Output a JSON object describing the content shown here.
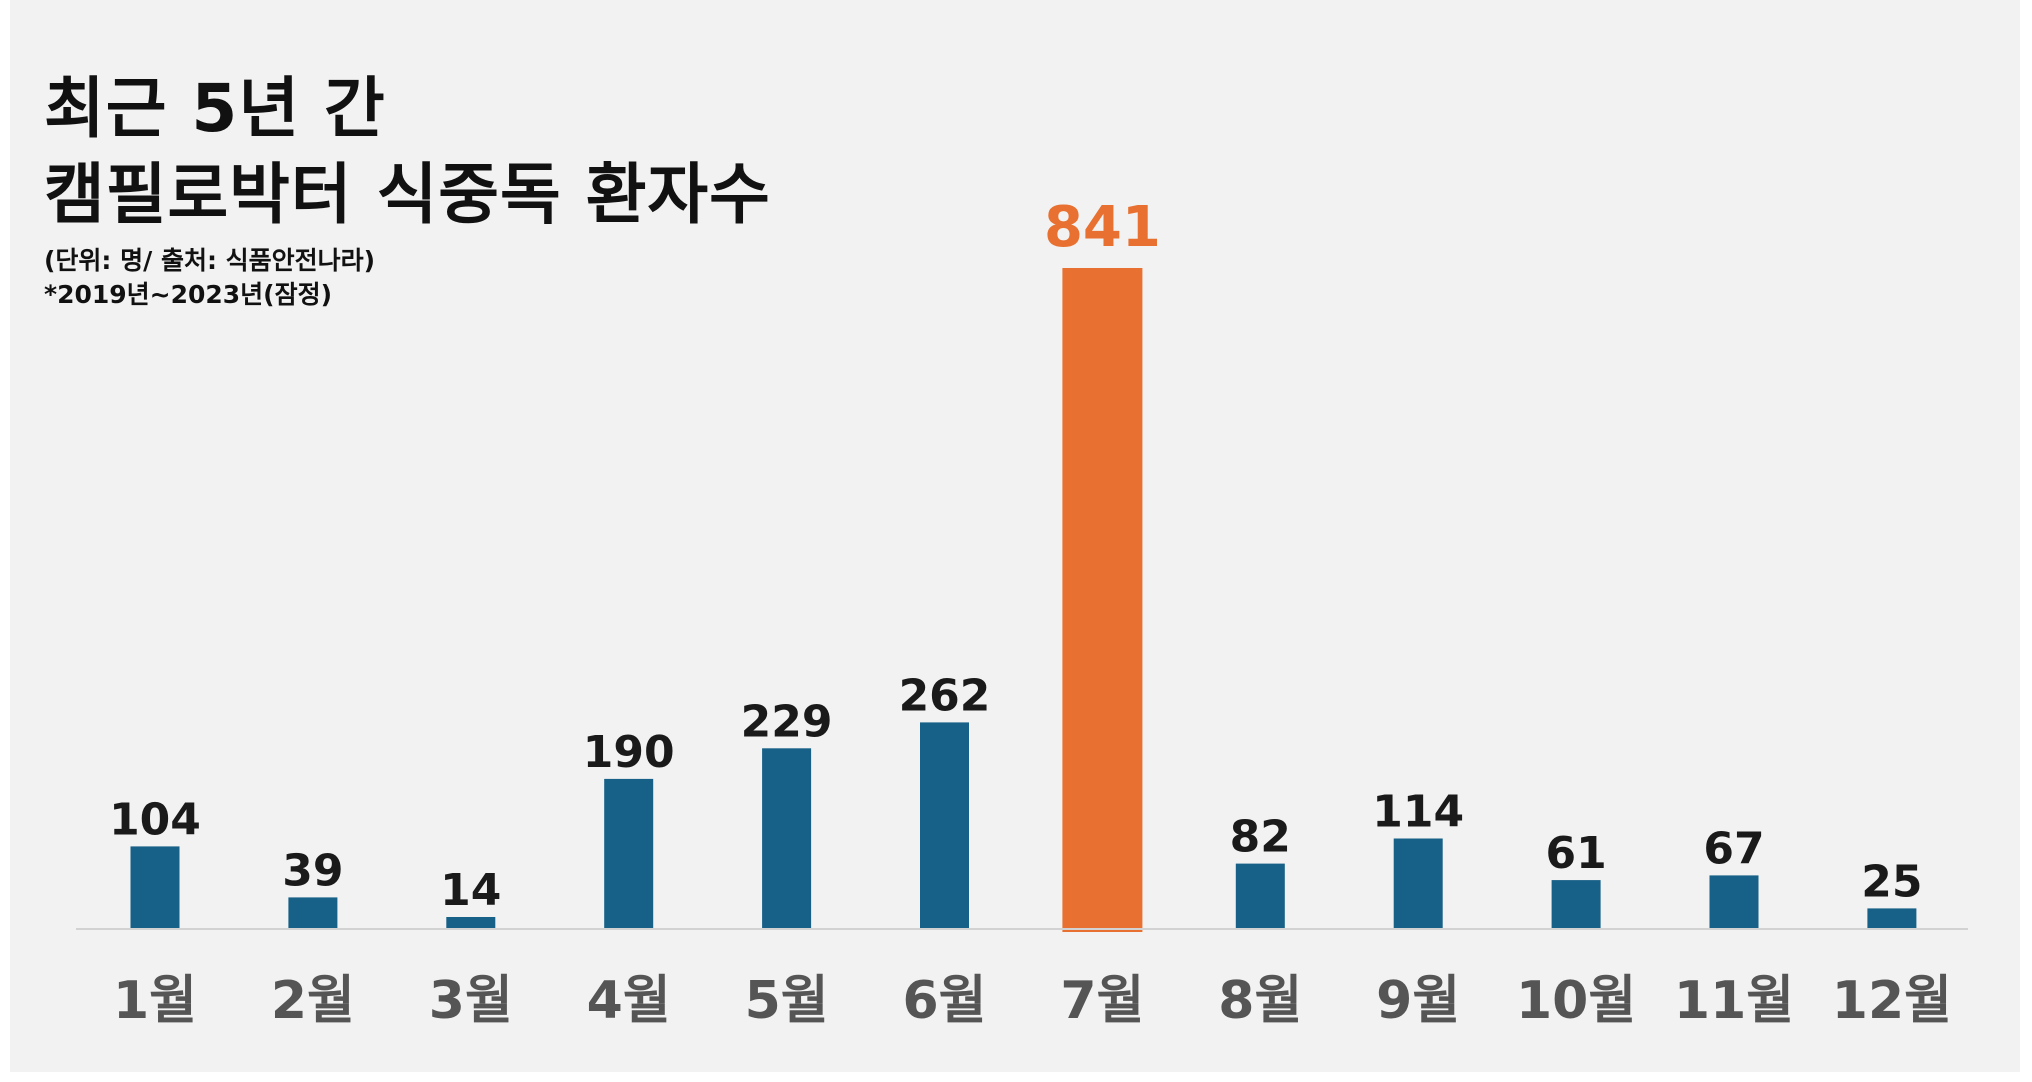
{
  "title": {
    "line1": "최근 5년 간",
    "line2": "캠필로박터 식중독 환자수"
  },
  "notes": {
    "unit_source": "(단위: 명/ 출처: 식품안전나라)",
    "period": "*2019년~2023년(잠정)"
  },
  "colors": {
    "background": "#f2f2f2",
    "bar": "#176087",
    "highlight_bar": "#e87030",
    "baseline": "#d2d2d2"
  },
  "chart_data": {
    "type": "bar",
    "title": "최근 5년 간 캠필로박터 식중독 환자수",
    "xlabel": "",
    "ylabel": "",
    "categories": [
      "1월",
      "2월",
      "3월",
      "4월",
      "5월",
      "6월",
      "7월",
      "8월",
      "9월",
      "10월",
      "11월",
      "12월"
    ],
    "values": [
      104,
      39,
      14,
      190,
      229,
      262,
      841,
      82,
      114,
      61,
      67,
      25
    ],
    "highlight_index": 6,
    "ylim": [
      0,
      841
    ],
    "grid": false,
    "legend": "none"
  }
}
